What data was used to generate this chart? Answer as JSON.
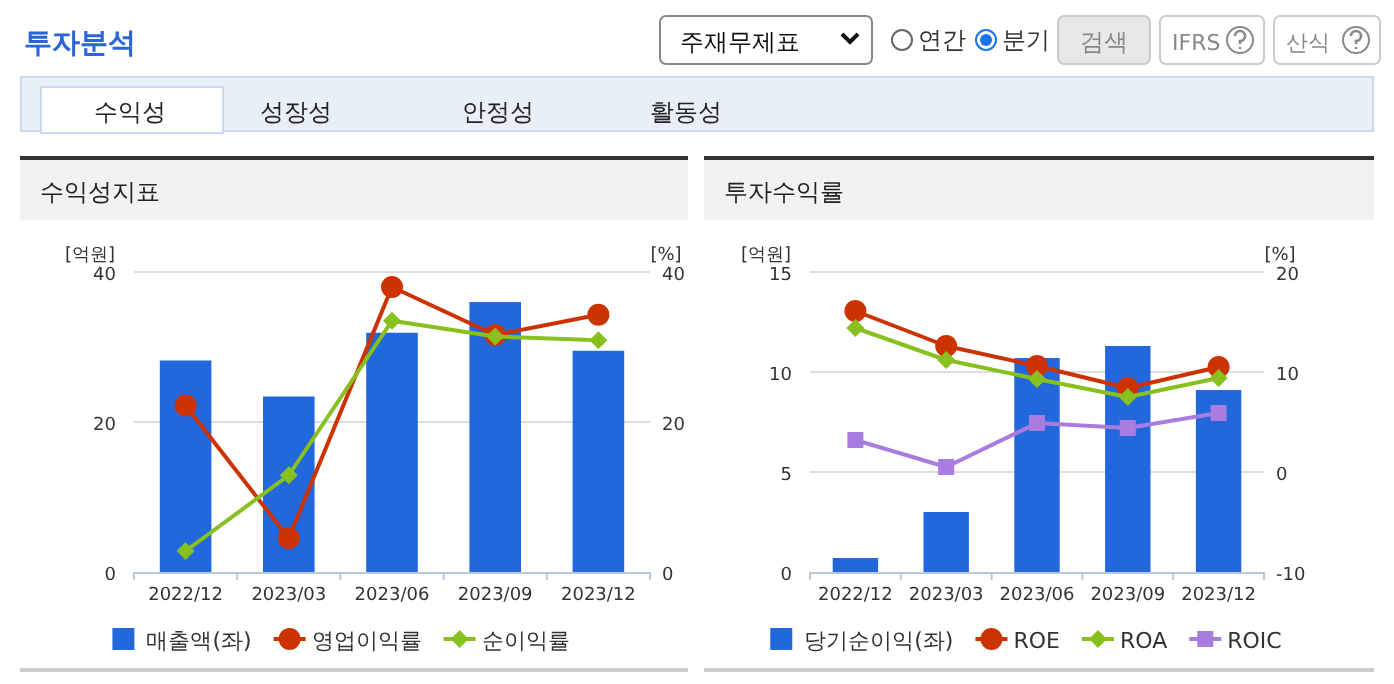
{
  "chart_data": [
    {
      "type": "bar",
      "title": "수익성지표",
      "ylabel": "[억원]",
      "y2label": "[%]",
      "annotations": [
        "투자분석",
        "주재무제표",
        "연간",
        "분기",
        "검색",
        "IFRS",
        "산식",
        "수익성",
        "성장성",
        "안정성",
        "활동성"
      ],
      "categories": [
        "2022/12",
        "2023/03",
        "2023/06",
        "2023/09",
        "2023/12"
      ],
      "ylim": [
        0,
        40
      ],
      "yticks": [
        0,
        20,
        40
      ],
      "y2lim": [
        0,
        40
      ],
      "y2ticks": [
        0,
        20,
        40
      ],
      "grid": "y",
      "legend": "bottom",
      "series": [
        {
          "name": "매출액(좌)",
          "color": "#2268dc",
          "values": [
            28.2,
            23.4,
            31.9,
            36.0,
            29.5
          ]
        },
        {
          "name": "영업이익률",
          "type": "line",
          "axis": "y2",
          "marker": "circle",
          "color": "#cc3300",
          "values": [
            22.2,
            4.5,
            38.0,
            31.6,
            34.3
          ]
        },
        {
          "name": "순이익률",
          "type": "line",
          "axis": "y2",
          "marker": "diamond",
          "color": "#88c020",
          "values": [
            2.8,
            12.9,
            33.5,
            31.4,
            30.9
          ]
        }
      ]
    },
    {
      "type": "bar",
      "title": "투자수익률",
      "ylabel": "[억원]",
      "y2label": "[%]",
      "categories": [
        "2022/12",
        "2023/03",
        "2023/06",
        "2023/09",
        "2023/12"
      ],
      "ylim": [
        0,
        15
      ],
      "yticks": [
        0,
        5,
        10,
        15
      ],
      "y2lim": [
        -10,
        20
      ],
      "y2ticks": [
        -10,
        0,
        10,
        20
      ],
      "grid": "y",
      "legend": "bottom",
      "series": [
        {
          "name": "당기순이익(좌)",
          "color": "#2268dc",
          "values": [
            0.7,
            3.0,
            10.7,
            11.3,
            9.1
          ]
        },
        {
          "name": "ROE",
          "type": "line",
          "axis": "y2",
          "marker": "circle",
          "color": "#cc3300",
          "values": [
            16.1,
            12.6,
            10.6,
            8.4,
            10.5
          ]
        },
        {
          "name": "ROA",
          "type": "line",
          "axis": "y2",
          "marker": "diamond",
          "color": "#88c020",
          "values": [
            14.4,
            11.2,
            9.3,
            7.5,
            9.4
          ]
        },
        {
          "name": "ROIC",
          "type": "line",
          "axis": "y2",
          "marker": "square",
          "color": "#a97de0",
          "values": [
            3.2,
            0.5,
            4.9,
            4.4,
            5.9
          ]
        }
      ]
    }
  ]
}
